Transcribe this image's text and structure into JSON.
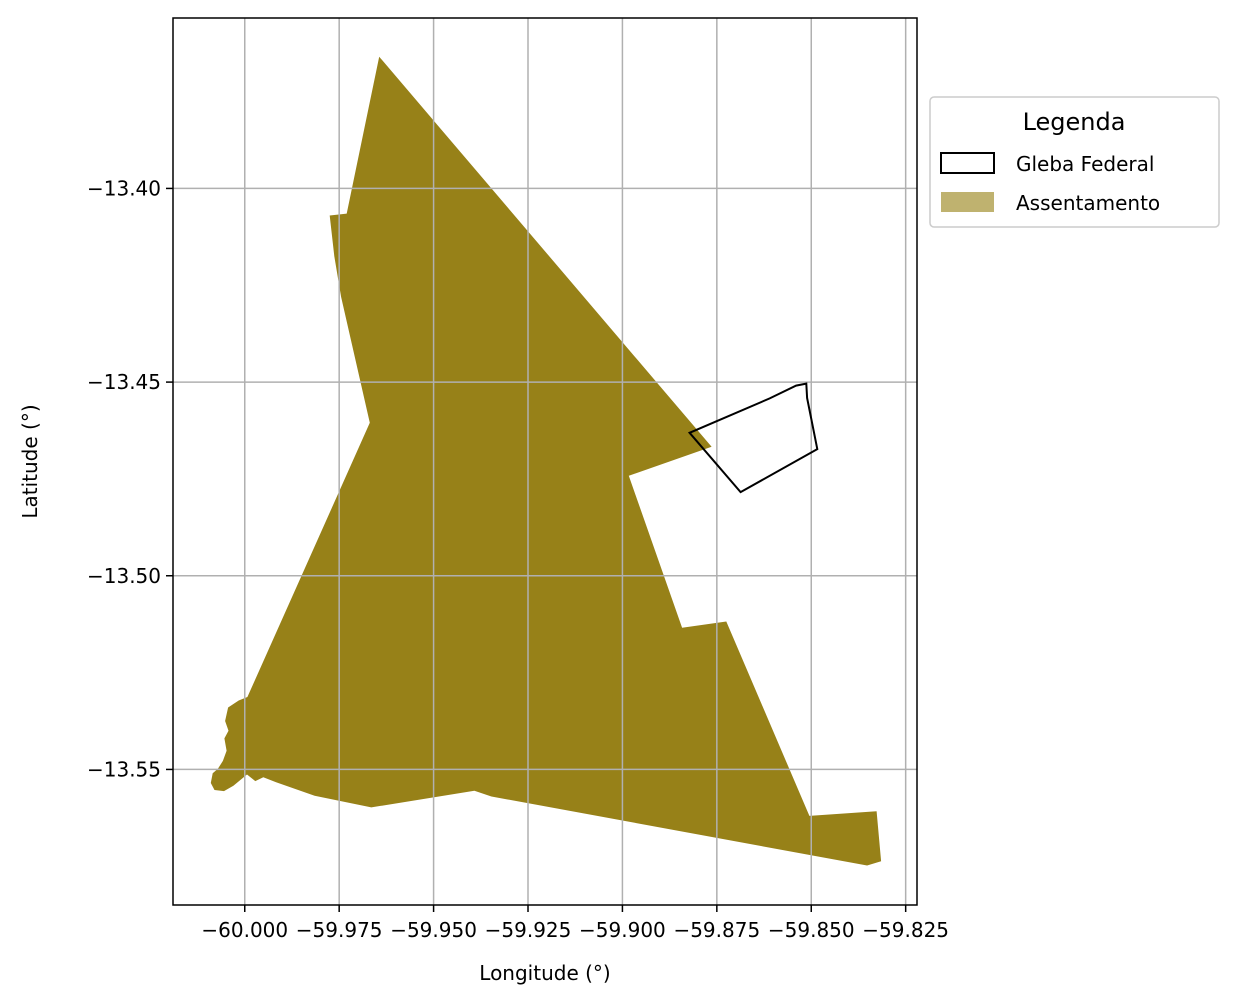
{
  "chart_data": {
    "type": "map",
    "xlabel": "Longitude (°)",
    "ylabel": "Latitude (°)",
    "xlim": [
      -60.019,
      -59.822
    ],
    "ylim": [
      -13.585,
      -13.356
    ],
    "grid": true,
    "x_ticks": [
      -60.0,
      -59.975,
      -59.95,
      -59.925,
      -59.9,
      -59.875,
      -59.85,
      -59.825
    ],
    "x_tick_labels": [
      "−60.000",
      "−59.975",
      "−59.950",
      "−59.925",
      "−59.900",
      "−59.875",
      "−59.850",
      "−59.825"
    ],
    "y_ticks": [
      -13.4,
      -13.45,
      -13.5,
      -13.55
    ],
    "y_tick_labels": [
      "−13.40",
      "−13.45",
      "−13.50",
      "−13.55"
    ],
    "legend": {
      "title": "Legenda",
      "placement": "outside-top-right",
      "entries": [
        {
          "label": "Gleba Federal",
          "style": "outline"
        },
        {
          "label": "Assentamento",
          "style": "fill"
        }
      ]
    },
    "layers": [
      {
        "name": "Assentamento",
        "color": "#978118",
        "legend_color": "#bfb26f",
        "coords": [
          [
            -59.9644,
            -13.366
          ],
          [
            -59.8764,
            -13.4667
          ],
          [
            -59.8983,
            -13.4742
          ],
          [
            -59.8842,
            -13.5134
          ],
          [
            -59.8725,
            -13.5118
          ],
          [
            -59.8505,
            -13.562
          ],
          [
            -59.8327,
            -13.5608
          ],
          [
            -59.8315,
            -13.5737
          ],
          [
            -59.8352,
            -13.5748
          ],
          [
            -59.9347,
            -13.557
          ],
          [
            -59.9392,
            -13.5555
          ],
          [
            -59.9665,
            -13.5598
          ],
          [
            -59.9815,
            -13.5568
          ],
          [
            -59.9917,
            -13.5533
          ],
          [
            -59.9951,
            -13.552
          ],
          [
            -59.9972,
            -13.553
          ],
          [
            -59.9994,
            -13.5513
          ],
          [
            -60.003,
            -13.5542
          ],
          [
            -60.0055,
            -13.5556
          ],
          [
            -60.008,
            -13.5553
          ],
          [
            -60.009,
            -13.5535
          ],
          [
            -60.0085,
            -13.551
          ],
          [
            -60.0071,
            -13.5498
          ],
          [
            -60.0058,
            -13.5478
          ],
          [
            -60.0048,
            -13.5452
          ],
          [
            -60.0054,
            -13.542
          ],
          [
            -60.0043,
            -13.54
          ],
          [
            -60.0052,
            -13.5375
          ],
          [
            -60.0044,
            -13.534
          ],
          [
            -60.0016,
            -13.5322
          ],
          [
            -59.9993,
            -13.5313
          ],
          [
            -59.9669,
            -13.4605
          ],
          [
            -59.9745,
            -13.428
          ],
          [
            -59.9763,
            -13.4175
          ],
          [
            -59.9775,
            -13.407
          ],
          [
            -59.973,
            -13.4065
          ]
        ]
      },
      {
        "name": "Gleba Federal",
        "color": "#000000",
        "coords": [
          [
            -59.8822,
            -13.4631
          ],
          [
            -59.8687,
            -13.4784
          ],
          [
            -59.8484,
            -13.4673
          ],
          [
            -59.8511,
            -13.4541
          ],
          [
            -59.8513,
            -13.4504
          ],
          [
            -59.854,
            -13.4509
          ],
          [
            -59.861,
            -13.4542
          ],
          [
            -59.8822,
            -13.4631
          ]
        ]
      }
    ]
  }
}
